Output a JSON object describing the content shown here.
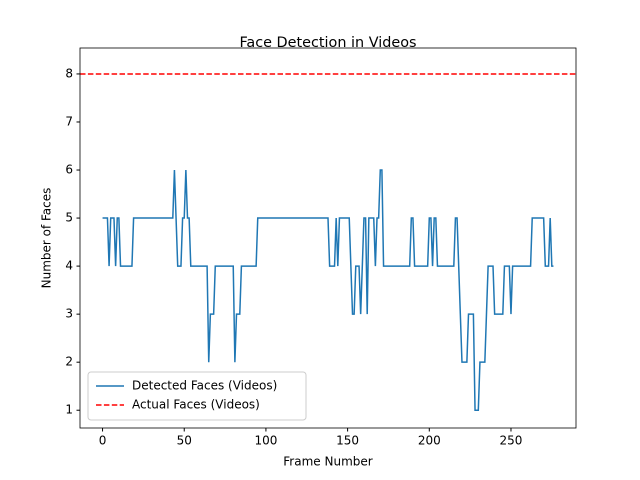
{
  "chart_data": {
    "type": "line",
    "title": "Face Detection in Videos",
    "xlabel": "Frame Number",
    "ylabel": "Number of Faces",
    "x": [
      0,
      1,
      2,
      3,
      4,
      5,
      6,
      7,
      8,
      9,
      10,
      11,
      12,
      13,
      14,
      15,
      16,
      17,
      18,
      19,
      20,
      21,
      22,
      23,
      24,
      25,
      26,
      27,
      28,
      29,
      30,
      31,
      32,
      33,
      34,
      35,
      36,
      37,
      38,
      39,
      40,
      41,
      42,
      43,
      44,
      45,
      46,
      47,
      48,
      49,
      50,
      51,
      52,
      53,
      54,
      55,
      56,
      57,
      58,
      59,
      60,
      61,
      62,
      63,
      64,
      65,
      66,
      67,
      68,
      69,
      70,
      71,
      72,
      73,
      74,
      75,
      76,
      77,
      78,
      79,
      80,
      81,
      82,
      83,
      84,
      85,
      86,
      87,
      88,
      89,
      90,
      91,
      92,
      93,
      94,
      95,
      96,
      97,
      98,
      99,
      100,
      101,
      102,
      103,
      104,
      105,
      106,
      107,
      108,
      109,
      110,
      111,
      112,
      113,
      114,
      115,
      116,
      117,
      118,
      119,
      120,
      121,
      122,
      123,
      124,
      125,
      126,
      127,
      128,
      129,
      130,
      131,
      132,
      133,
      134,
      135,
      136,
      137,
      138,
      139,
      140,
      141,
      142,
      143,
      144,
      145,
      146,
      147,
      148,
      149,
      150,
      151,
      152,
      153,
      154,
      155,
      156,
      157,
      158,
      159,
      160,
      161,
      162,
      163,
      164,
      165,
      166,
      167,
      168,
      169,
      170,
      171,
      172,
      173,
      174,
      175,
      176,
      177,
      178,
      179,
      180,
      181,
      182,
      183,
      184,
      185,
      186,
      187,
      188,
      189,
      190,
      191,
      192,
      193,
      194,
      195,
      196,
      197,
      198,
      199,
      200,
      201,
      202,
      203,
      204,
      205,
      206,
      207,
      208,
      209,
      210,
      211,
      212,
      213,
      214,
      215,
      216,
      217,
      218,
      219,
      220,
      221,
      222,
      223,
      224,
      225,
      226,
      227,
      228,
      229,
      230,
      231,
      232,
      233,
      234,
      235,
      236,
      237,
      238,
      239,
      240,
      241,
      242,
      243,
      244,
      245,
      246,
      247,
      248,
      249,
      250,
      251,
      252,
      253,
      254,
      255,
      256,
      257,
      258,
      259,
      260,
      261,
      262,
      263,
      264,
      265,
      266,
      267,
      268,
      269,
      270,
      271,
      272,
      273,
      274,
      275,
      276
    ],
    "series": [
      {
        "name": "Detected Faces (Videos)",
        "color": "#1f77b4",
        "values": [
          5,
          5,
          5,
          5,
          4,
          5,
          5,
          5,
          4,
          5,
          5,
          4,
          4,
          4,
          4,
          4,
          4,
          4,
          4,
          5,
          5,
          5,
          5,
          5,
          5,
          5,
          5,
          5,
          5,
          5,
          5,
          5,
          5,
          5,
          5,
          5,
          5,
          5,
          5,
          5,
          5,
          5,
          5,
          5,
          6,
          5,
          4,
          4,
          4,
          5,
          5,
          6,
          5,
          5,
          4,
          4,
          4,
          4,
          4,
          4,
          4,
          4,
          4,
          4,
          4,
          2,
          3,
          3,
          3,
          4,
          4,
          4,
          4,
          4,
          4,
          4,
          4,
          4,
          4,
          4,
          4,
          2,
          3,
          3,
          3,
          4,
          4,
          4,
          4,
          4,
          4,
          4,
          4,
          4,
          4,
          5,
          5,
          5,
          5,
          5,
          5,
          5,
          5,
          5,
          5,
          5,
          5,
          5,
          5,
          5,
          5,
          5,
          5,
          5,
          5,
          5,
          5,
          5,
          5,
          5,
          5,
          5,
          5,
          5,
          5,
          5,
          5,
          5,
          5,
          5,
          5,
          5,
          5,
          5,
          5,
          5,
          5,
          5,
          5,
          4,
          4,
          4,
          4,
          5,
          4,
          5,
          5,
          5,
          5,
          5,
          5,
          5,
          4,
          3,
          3,
          4,
          4,
          4,
          3,
          4,
          5,
          5,
          3,
          5,
          5,
          5,
          5,
          4,
          5,
          5,
          6,
          6,
          4,
          4,
          4,
          4,
          4,
          4,
          4,
          4,
          4,
          4,
          4,
          4,
          4,
          4,
          4,
          4,
          4,
          5,
          5,
          4,
          4,
          4,
          4,
          4,
          4,
          4,
          4,
          4,
          5,
          5,
          4,
          5,
          5,
          4,
          4,
          4,
          4,
          4,
          4,
          4,
          4,
          4,
          4,
          4,
          5,
          5,
          4,
          3,
          2,
          2,
          2,
          2,
          3,
          3,
          3,
          3,
          1,
          1,
          1,
          2,
          2,
          2,
          2,
          3,
          4,
          4,
          4,
          4,
          3,
          3,
          3,
          3,
          3,
          3,
          4,
          4,
          4,
          4,
          3,
          4,
          4,
          4,
          4,
          4,
          4,
          4,
          4,
          4,
          4,
          4,
          4,
          5,
          5,
          5,
          5,
          5,
          5,
          5,
          5,
          4,
          4,
          4,
          5,
          4,
          4
        ]
      }
    ],
    "reference_line": {
      "name": "Actual Faces (Videos)",
      "value": 8,
      "color": "#ff0000",
      "style": "dashed"
    },
    "xlim": [
      -13.8,
      289.8
    ],
    "xticks": [
      0,
      50,
      100,
      150,
      200,
      250
    ],
    "ylim": [
      0.63,
      8.54
    ],
    "yticks": [
      1,
      2,
      3,
      4,
      5,
      6,
      7,
      8
    ],
    "legend": "lower left"
  }
}
